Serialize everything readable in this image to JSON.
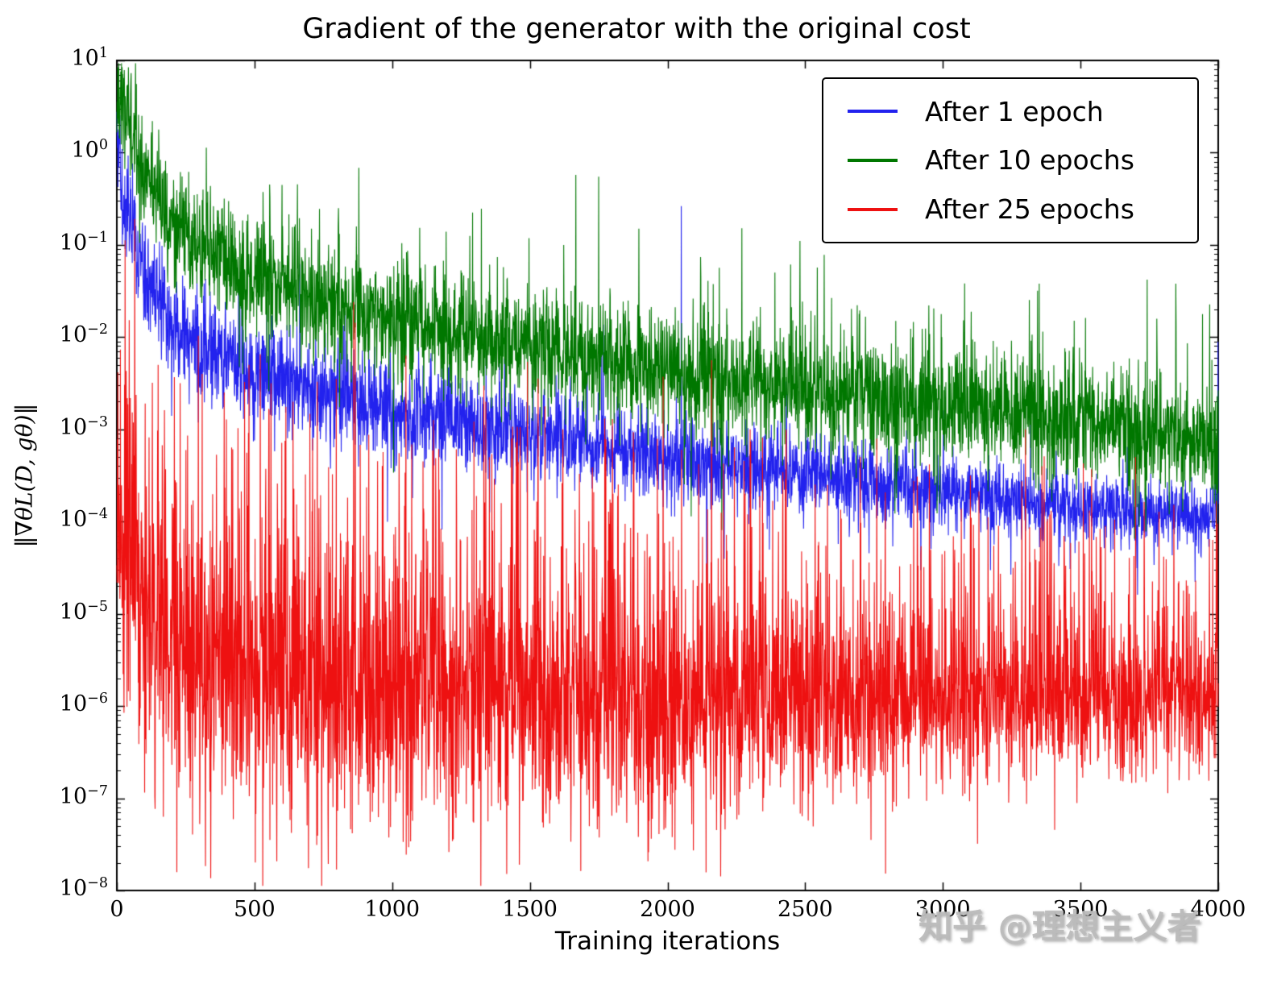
{
  "watermark": "知乎 @理想主义者",
  "colors": {
    "background": "#ffffff",
    "axis": "#000000"
  },
  "chart_data": {
    "type": "line",
    "title": "Gradient of the generator with the original cost",
    "xlabel": "Training iterations",
    "ylabel": "‖∇θL(D, gθ)‖",
    "x_range": [
      0,
      4000
    ],
    "y_scale": "log",
    "y_range_exponents": [
      -8,
      1
    ],
    "x_ticks": [
      0,
      500,
      1000,
      1500,
      2000,
      2500,
      3000,
      3500,
      4000
    ],
    "y_tick_exponents": [
      1,
      0,
      -1,
      -2,
      -3,
      -4,
      -5,
      -6,
      -7,
      -8
    ],
    "grid": false,
    "legend_position": "upper right",
    "series": [
      {
        "name": "After 1 epoch",
        "color": "#2222ee",
        "description": "Gradient norm after 1 epoch: starts near 2, decays steeply to ~1e-2 by iteration 500, then slowly to ~1e-4 by iteration 4000; noisy band about half a decade wide.",
        "trend_log10": [
          [
            0,
            0.3
          ],
          [
            30,
            -0.6
          ],
          [
            100,
            -1.3
          ],
          [
            200,
            -1.9
          ],
          [
            300,
            -2.1
          ],
          [
            500,
            -2.35
          ],
          [
            700,
            -2.55
          ],
          [
            1000,
            -2.75
          ],
          [
            1300,
            -2.95
          ],
          [
            1600,
            -3.1
          ],
          [
            2000,
            -3.3
          ],
          [
            2400,
            -3.45
          ],
          [
            2800,
            -3.6
          ],
          [
            3200,
            -3.75
          ],
          [
            3600,
            -3.9
          ],
          [
            4000,
            -3.95
          ]
        ],
        "noise_sigma": [
          0.3,
          0.18
        ],
        "spike_prob": [
          0.02,
          0.008
        ],
        "spike_max": [
          0.9,
          1.0
        ],
        "dip_prob": 0.012,
        "dip_max": 0.9,
        "notable_spikes": [
          [
            2050,
            -0.58
          ],
          [
            3999,
            -2.05
          ]
        ]
      },
      {
        "name": "After 10 epochs",
        "color": "#007700",
        "description": "Gradient norm after 10 epochs: starts near 5, decays more slowly, stays above the 1-epoch curve, ends near 6e-4; frequent upward spikes up to ~0.5.",
        "trend_log10": [
          [
            0,
            0.72
          ],
          [
            40,
            0.45
          ],
          [
            100,
            -0.2
          ],
          [
            200,
            -0.75
          ],
          [
            350,
            -1.05
          ],
          [
            500,
            -1.3
          ],
          [
            700,
            -1.55
          ],
          [
            1000,
            -1.8
          ],
          [
            1400,
            -2.05
          ],
          [
            1800,
            -2.25
          ],
          [
            2200,
            -2.45
          ],
          [
            2600,
            -2.6
          ],
          [
            3000,
            -2.75
          ],
          [
            3400,
            -2.9
          ],
          [
            4000,
            -3.15
          ]
        ],
        "noise_sigma": [
          0.3,
          0.32
        ],
        "spike_prob": [
          0.05,
          0.04
        ],
        "spike_max": [
          1.3,
          1.5
        ],
        "dip_prob": 0.02,
        "dip_max": 1.1,
        "notable_spikes": [
          [
            600,
            -0.35
          ],
          [
            870,
            -0.8
          ],
          [
            1750,
            -0.26
          ],
          [
            2270,
            -0.82
          ],
          [
            2390,
            -1.3
          ],
          [
            3350,
            -1.42
          ]
        ]
      },
      {
        "name": "After 25 epochs",
        "color": "#ee1111",
        "description": "Gradient norm after 25 epochs: collapses quickly to a noisy baseline near 1e-6 with heavy intermittent spikes, early ones reaching 1e-1, later ones mostly below 1e-3.",
        "trend_log10": [
          [
            0,
            -4.3
          ],
          [
            50,
            -4.8
          ],
          [
            120,
            -5.2
          ],
          [
            250,
            -5.5
          ],
          [
            450,
            -5.75
          ],
          [
            700,
            -5.9
          ],
          [
            1000,
            -6.0
          ],
          [
            1500,
            -6.0
          ],
          [
            2500,
            -6.0
          ],
          [
            4000,
            -5.95
          ]
        ],
        "noise_sigma": [
          0.8,
          0.38
        ],
        "spike_prob": [
          0.33,
          0.13
        ],
        "spike_max": [
          2.9,
          2.3
        ],
        "dip_prob": 0.03,
        "dip_max": 0.9,
        "notable_spikes": [
          [
            30,
            -0.95
          ],
          [
            65,
            -0.72
          ],
          [
            150,
            -2.3
          ],
          [
            230,
            -2.5
          ],
          [
            310,
            -2.4
          ],
          [
            390,
            -2.6
          ],
          [
            480,
            -2.3
          ],
          [
            560,
            -2.5
          ],
          [
            640,
            -2.7
          ],
          [
            860,
            -1.62
          ],
          [
            1050,
            -2.2
          ],
          [
            1150,
            -2.9
          ],
          [
            1340,
            -2.7
          ],
          [
            1530,
            -2.45
          ],
          [
            1555,
            -2.75
          ],
          [
            1620,
            -3.0
          ],
          [
            2160,
            -2.25
          ],
          [
            2300,
            -3.0
          ],
          [
            2430,
            -3.05
          ],
          [
            2700,
            -3.3
          ],
          [
            2760,
            -3.1
          ],
          [
            3100,
            -3.5
          ],
          [
            3300,
            -3.0
          ],
          [
            3360,
            -3.4
          ],
          [
            3700,
            -3.3
          ],
          [
            3980,
            -4.2
          ]
        ]
      }
    ]
  }
}
